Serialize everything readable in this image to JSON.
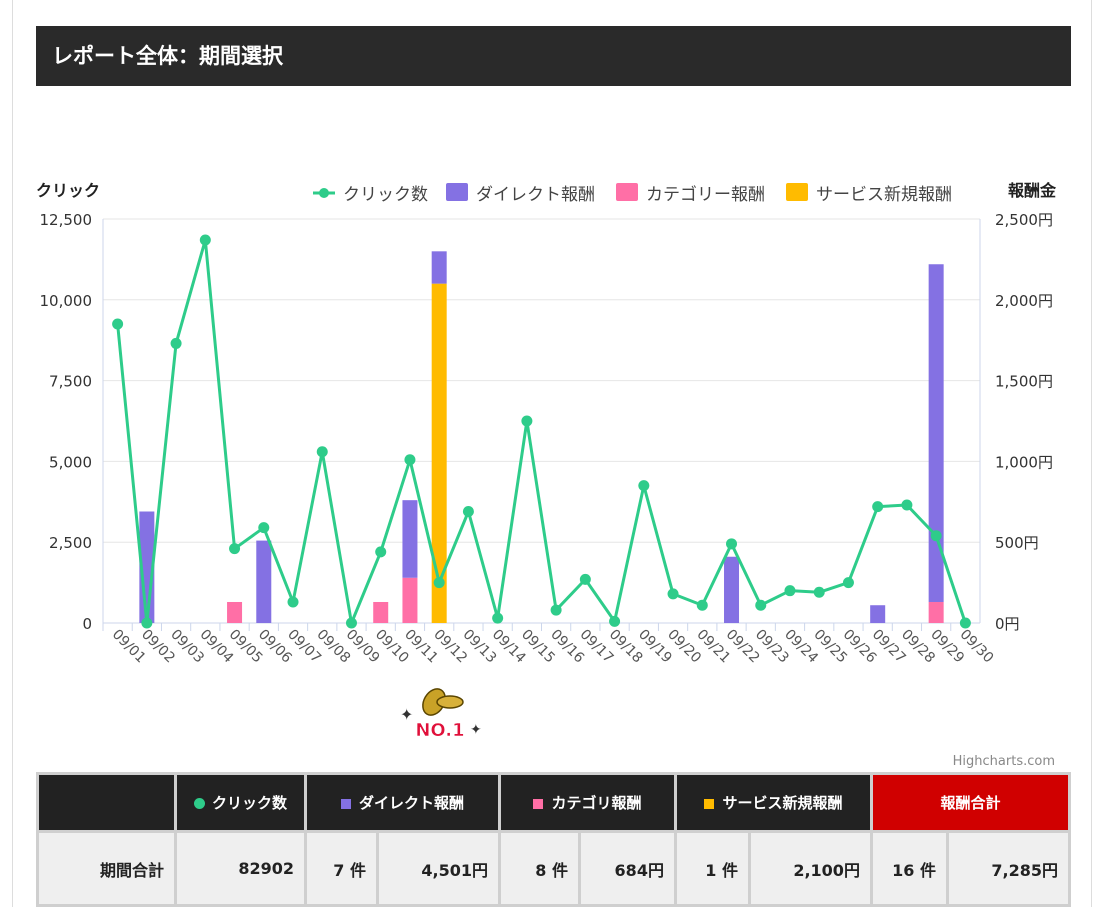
{
  "header": {
    "title": "レポート全体：期間選択"
  },
  "chart_data": {
    "type": "bar+line",
    "ylabel_left": "クリック",
    "ylabel_right": "報酬金",
    "ylim_left": [
      0,
      12500
    ],
    "ylim_right": [
      0,
      2500
    ],
    "yticks_left": [
      "0",
      "2,500",
      "5,000",
      "7,500",
      "10,000",
      "12,500"
    ],
    "yticks_right": [
      "0円",
      "500円",
      "1,000円",
      "1,500円",
      "2,000円",
      "2,500円"
    ],
    "categories": [
      "09/01",
      "09/02",
      "09/03",
      "09/04",
      "09/05",
      "09/06",
      "09/07",
      "09/08",
      "09/09",
      "09/10",
      "09/11",
      "09/12",
      "09/13",
      "09/14",
      "09/15",
      "09/16",
      "09/17",
      "09/18",
      "09/19",
      "09/20",
      "09/21",
      "09/22",
      "09/23",
      "09/24",
      "09/25",
      "09/26",
      "09/27",
      "09/28",
      "09/29",
      "09/30"
    ],
    "legend": [
      "クリック数",
      "ダイレクト報酬",
      "カテゴリー報酬",
      "サービス新規報酬"
    ],
    "series": [
      {
        "name": "クリック数",
        "type": "line",
        "color": "#2ecc8a",
        "values": [
          9250,
          0,
          8650,
          11850,
          2300,
          2950,
          650,
          5300,
          0,
          2200,
          5050,
          1250,
          3450,
          150,
          6250,
          400,
          1350,
          50,
          4250,
          900,
          550,
          2450,
          550,
          1000,
          950,
          1250,
          3600,
          3650,
          2700,
          0
        ]
      },
      {
        "name": "カテゴリー報酬",
        "type": "bar",
        "color": "#ff6fa6",
        "values": [
          0,
          0,
          0,
          0,
          130,
          0,
          0,
          0,
          0,
          130,
          280,
          0,
          0,
          0,
          0,
          0,
          0,
          0,
          0,
          0,
          0,
          0,
          0,
          0,
          0,
          0,
          0,
          0,
          130,
          0
        ]
      },
      {
        "name": "サービス新規報酬",
        "type": "bar",
        "color": "#ffbb00",
        "values": [
          0,
          0,
          0,
          0,
          0,
          0,
          0,
          0,
          0,
          0,
          0,
          2100,
          0,
          0,
          0,
          0,
          0,
          0,
          0,
          0,
          0,
          0,
          0,
          0,
          0,
          0,
          0,
          0,
          0,
          0
        ]
      },
      {
        "name": "ダイレクト報酬",
        "type": "bar",
        "color": "#8471e3",
        "values": [
          0,
          690,
          0,
          0,
          0,
          510,
          0,
          0,
          0,
          0,
          480,
          200,
          0,
          0,
          0,
          0,
          0,
          0,
          0,
          0,
          0,
          410,
          0,
          0,
          0,
          0,
          110,
          0,
          2090,
          0
        ]
      }
    ]
  },
  "credit": "Highcharts.com",
  "badge": {
    "text": "NO.1"
  },
  "table": {
    "headers": {
      "clicks": "クリック数",
      "direct": "ダイレクト報酬",
      "category": "カテゴリ報酬",
      "service": "サービス新規報酬",
      "total": "報酬合計"
    },
    "row": {
      "label": "期間合計",
      "clicks": "82902",
      "direct_count": "7 件",
      "direct_amount": "4,501円",
      "category_count": "8 件",
      "category_amount": "684円",
      "service_count": "1 件",
      "service_amount": "2,100円",
      "total_count": "16 件",
      "total_amount": "7,285円"
    }
  },
  "colors": {
    "click": "#2ecc8a",
    "direct": "#8471e3",
    "category": "#ff6fa6",
    "service": "#ffbb00",
    "total_header": "#d00000"
  }
}
